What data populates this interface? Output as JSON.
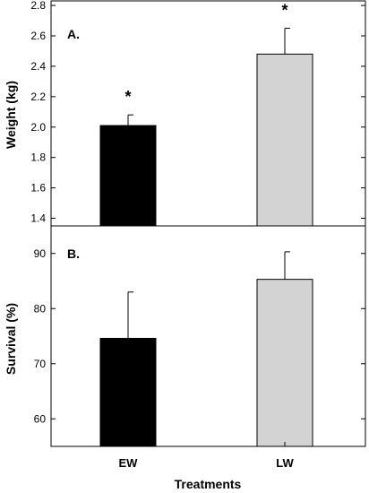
{
  "chart_data": [
    {
      "type": "bar",
      "panel_label": "A.",
      "ylabel": "Weight (kg)",
      "ylim": [
        1.35,
        2.83
      ],
      "yticks": [
        "1.4",
        "1.6",
        "1.8",
        "2.0",
        "2.2",
        "2.4",
        "2.6",
        "2.8"
      ],
      "categories": [
        "EW",
        "LW"
      ],
      "values": [
        2.01,
        2.48
      ],
      "errors": [
        0.07,
        0.17
      ],
      "annotations": [
        "*",
        "*"
      ],
      "colors": [
        "#000000",
        "#d3d3d3"
      ]
    },
    {
      "type": "bar",
      "panel_label": "B.",
      "ylabel": "Survival (%)",
      "ylim": [
        55,
        95
      ],
      "yticks": [
        "60",
        "70",
        "80",
        "90"
      ],
      "categories": [
        "EW",
        "LW"
      ],
      "values": [
        74.6,
        85.3
      ],
      "errors": [
        8.4,
        5.0
      ],
      "colors": [
        "#000000",
        "#d3d3d3"
      ]
    }
  ],
  "xlabel": "Treatments",
  "xticks": [
    "EW",
    "LW"
  ]
}
